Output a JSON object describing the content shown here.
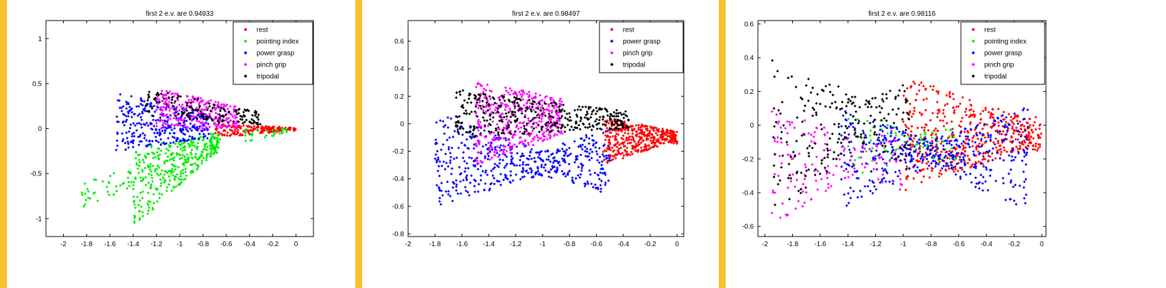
{
  "colors": {
    "frame": "#f5c22e",
    "rest": "#ff0000",
    "pointing index": "#00ee00",
    "power grasp": "#0000ff",
    "pinch grip": "#ff00ff",
    "tripodal": "#000000"
  },
  "chart_data": [
    {
      "type": "scatter",
      "title": "first 2 e.v. are 0.94933",
      "xlim": [
        -2.15,
        0.15
      ],
      "ylim": [
        -1.2,
        1.2
      ],
      "xticks": [
        "-2",
        "-1.8",
        "-1.6",
        "-1.4",
        "-1.2",
        "-1",
        "-0.8",
        "-0.6",
        "-0.4",
        "-0.2",
        "0"
      ],
      "xtick_values": [
        -2,
        -1.8,
        -1.6,
        -1.4,
        -1.2,
        -1,
        -0.8,
        -0.6,
        -0.4,
        -0.2,
        0
      ],
      "yticks": [
        "1",
        "0.5",
        "0",
        "-0.5",
        "-1"
      ],
      "ytick_values": [
        1,
        0.5,
        0,
        -0.5,
        -1
      ],
      "legend_position": "top-right",
      "series": [
        {
          "name": "rest",
          "clusters": [
            {
              "x": [
                -0.7,
                0.0
              ],
              "y": [
                -0.1,
                0.05
              ],
              "n": 180,
              "tx": -0.03,
              "ty": 0.0
            }
          ]
        },
        {
          "name": "pointing index",
          "clusters": [
            {
              "x": [
                -1.4,
                -0.65
              ],
              "y": [
                -1.1,
                -0.2
              ],
              "n": 380,
              "tx": -0.7,
              "ty": 0.0
            },
            {
              "x": [
                -1.85,
                -1.4
              ],
              "y": [
                -0.9,
                -0.6
              ],
              "n": 40,
              "tx": -0.7,
              "ty": 0.0
            },
            {
              "x": [
                -0.45,
                -0.05
              ],
              "y": [
                -0.15,
                0.0
              ],
              "n": 30,
              "tx": -0.03,
              "ty": 0.0
            }
          ]
        },
        {
          "name": "power grasp",
          "clusters": [
            {
              "x": [
                -1.55,
                -0.75
              ],
              "y": [
                -0.25,
                0.4
              ],
              "n": 320,
              "tx": -0.5,
              "ty": 0.0
            }
          ]
        },
        {
          "name": "pinch grip",
          "clusters": [
            {
              "x": [
                -1.2,
                -0.5
              ],
              "y": [
                0.0,
                0.45
              ],
              "n": 280,
              "tx": -0.05,
              "ty": 0.0
            }
          ]
        },
        {
          "name": "tripodal",
          "clusters": [
            {
              "x": [
                -1.3,
                -0.3
              ],
              "y": [
                0.1,
                0.45
              ],
              "n": 150,
              "tx": -0.03,
              "ty": 0.0
            }
          ]
        }
      ]
    },
    {
      "type": "scatter",
      "title": "first 2 e.v. are 0.98497",
      "xlim": [
        -2.0,
        0.05
      ],
      "ylim": [
        -0.82,
        0.75
      ],
      "xticks": [
        "-2",
        "-1.8",
        "-1.6",
        "-1.4",
        "-1.2",
        "-1",
        "-0.8",
        "-0.6",
        "-0.4",
        "-0.2",
        "0"
      ],
      "xtick_values": [
        -2,
        -1.8,
        -1.6,
        -1.4,
        -1.2,
        -1,
        -0.8,
        -0.6,
        -0.4,
        -0.2,
        0
      ],
      "yticks": [
        "0.6",
        "0.4",
        "0.2",
        "0",
        "-0.2",
        "-0.4",
        "-0.6",
        "-0.8"
      ],
      "ytick_values": [
        0.6,
        0.4,
        0.2,
        0,
        -0.2,
        -0.4,
        -0.6,
        -0.8
      ],
      "legend_position": "top-right",
      "series": [
        {
          "name": "rest",
          "clusters": [
            {
              "x": [
                -0.55,
                0.0
              ],
              "y": [
                -0.3,
                0.05
              ],
              "n": 420,
              "tx": -0.05,
              "ty": -0.08
            }
          ]
        },
        {
          "name": "power grasp",
          "clusters": [
            {
              "x": [
                -1.8,
                -0.5
              ],
              "y": [
                -0.6,
                0.1
              ],
              "n": 500,
              "tx": -1.0,
              "ty": -0.3
            }
          ]
        },
        {
          "name": "pinch grip",
          "clusters": [
            {
              "x": [
                -1.5,
                -0.85
              ],
              "y": [
                -0.3,
                0.3
              ],
              "n": 420,
              "tx": -0.6,
              "ty": 0.1
            }
          ]
        },
        {
          "name": "tripodal",
          "clusters": [
            {
              "x": [
                -1.65,
                -0.35
              ],
              "y": [
                -0.1,
                0.25
              ],
              "n": 380,
              "tx": -0.15,
              "ty": 0.0
            }
          ]
        }
      ]
    },
    {
      "type": "scatter",
      "title": "first 2 e.v. are 0.98116",
      "xlim": [
        -2.05,
        0.03
      ],
      "ylim": [
        -0.66,
        0.62
      ],
      "xticks": [
        "-2",
        "-1.8",
        "-1.6",
        "-1.4",
        "-1.2",
        "-1",
        "-0.8",
        "-0.6",
        "-0.4",
        "-0.2",
        "0"
      ],
      "xtick_values": [
        -2,
        -1.8,
        -1.6,
        -1.4,
        -1.2,
        -1,
        -0.8,
        -0.6,
        -0.4,
        -0.2,
        0
      ],
      "yticks": [
        "0.6",
        "0.4",
        "0.2",
        "0",
        "-0.2",
        "-0.4",
        "-0.6"
      ],
      "ytick_values": [
        0.6,
        0.4,
        0.2,
        0,
        -0.2,
        -0.4,
        -0.6
      ],
      "legend_position": "top-right",
      "series": [
        {
          "name": "rest",
          "clusters": [
            {
              "x": [
                -1.0,
                0.0
              ],
              "y": [
                -0.4,
                0.3
              ],
              "n": 500,
              "tx": -0.1,
              "ty": -0.05
            }
          ]
        },
        {
          "name": "pointing index",
          "clusters": [
            {
              "x": [
                -1.4,
                -0.6
              ],
              "y": [
                -0.35,
                0.1
              ],
              "n": 90,
              "tx": -0.9,
              "ty": -0.1
            }
          ]
        },
        {
          "name": "power grasp",
          "clusters": [
            {
              "x": [
                -1.45,
                -0.1
              ],
              "y": [
                -0.5,
                0.1
              ],
              "n": 450,
              "tx": -0.8,
              "ty": -0.15
            }
          ]
        },
        {
          "name": "pinch grip",
          "clusters": [
            {
              "x": [
                -1.95,
                -1.0
              ],
              "y": [
                -0.6,
                0.1
              ],
              "n": 160,
              "tx": -1.3,
              "ty": -0.15
            }
          ]
        },
        {
          "name": "tripodal",
          "clusters": [
            {
              "x": [
                -1.95,
                -0.95
              ],
              "y": [
                -0.55,
                0.4
              ],
              "n": 220,
              "tx": -1.25,
              "ty": 0.07
            }
          ]
        }
      ]
    }
  ]
}
